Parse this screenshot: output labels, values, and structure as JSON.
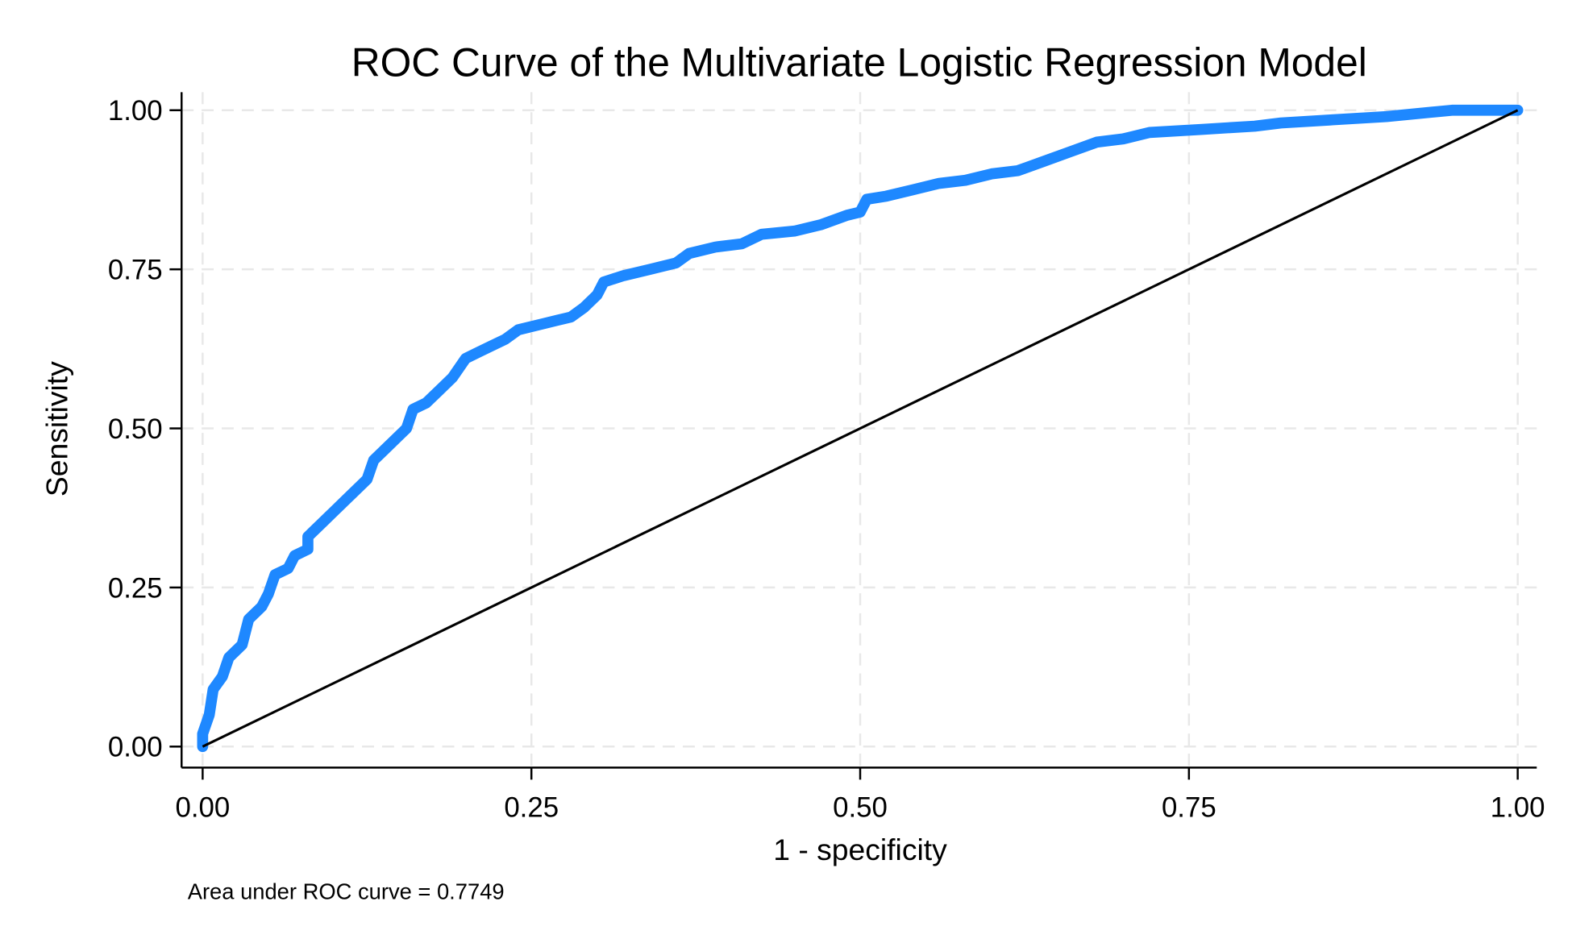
{
  "chart_data": {
    "type": "line",
    "title": "ROC Curve of the Multivariate Logistic Regression Model",
    "xlabel": "1 - specificity",
    "ylabel": "Sensitivity",
    "xlim": [
      0,
      1
    ],
    "ylim": [
      0,
      1
    ],
    "grid": true,
    "xticks": [
      "0.00",
      "0.25",
      "0.50",
      "0.75",
      "1.00"
    ],
    "yticks": [
      "0.00",
      "0.25",
      "0.50",
      "0.75",
      "1.00"
    ],
    "tick_values": [
      0,
      0.25,
      0.5,
      0.75,
      1
    ],
    "note": "Area under ROC curve = 0.7749",
    "series": [
      {
        "name": "ROC curve",
        "color": "#1E88FF",
        "x": [
          0,
          0,
          0.005,
          0.008,
          0.015,
          0.02,
          0.03,
          0.035,
          0.045,
          0.05,
          0.055,
          0.065,
          0.07,
          0.08,
          0.08,
          0.09,
          0.1,
          0.11,
          0.12,
          0.125,
          0.13,
          0.14,
          0.15,
          0.155,
          0.16,
          0.17,
          0.18,
          0.19,
          0.2,
          0.21,
          0.22,
          0.23,
          0.24,
          0.26,
          0.27,
          0.28,
          0.29,
          0.3,
          0.305,
          0.32,
          0.34,
          0.36,
          0.37,
          0.39,
          0.41,
          0.425,
          0.45,
          0.47,
          0.49,
          0.5,
          0.505,
          0.52,
          0.54,
          0.56,
          0.58,
          0.6,
          0.62,
          0.64,
          0.66,
          0.68,
          0.7,
          0.72,
          0.76,
          0.8,
          0.82,
          0.86,
          0.9,
          0.95,
          1
        ],
        "y": [
          0,
          0.02,
          0.05,
          0.09,
          0.11,
          0.14,
          0.16,
          0.2,
          0.22,
          0.24,
          0.27,
          0.28,
          0.3,
          0.31,
          0.33,
          0.35,
          0.37,
          0.39,
          0.41,
          0.42,
          0.45,
          0.47,
          0.49,
          0.5,
          0.53,
          0.54,
          0.56,
          0.58,
          0.61,
          0.62,
          0.63,
          0.64,
          0.655,
          0.665,
          0.67,
          0.675,
          0.69,
          0.71,
          0.73,
          0.74,
          0.75,
          0.76,
          0.775,
          0.785,
          0.79,
          0.805,
          0.81,
          0.82,
          0.835,
          0.84,
          0.86,
          0.865,
          0.875,
          0.885,
          0.89,
          0.9,
          0.905,
          0.92,
          0.935,
          0.95,
          0.955,
          0.965,
          0.97,
          0.975,
          0.98,
          0.985,
          0.99,
          1.0,
          1.0
        ]
      },
      {
        "name": "Reference line",
        "color": "#000000",
        "x": [
          0,
          1
        ],
        "y": [
          0,
          1
        ]
      }
    ]
  }
}
